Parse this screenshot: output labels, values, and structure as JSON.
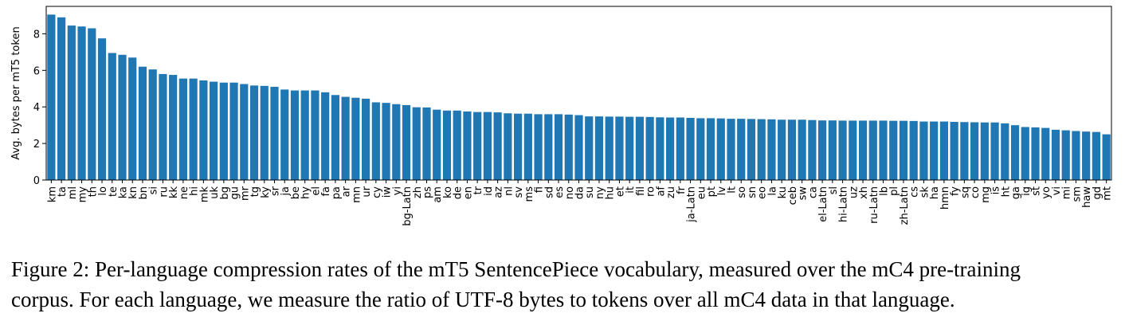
{
  "chart_data": {
    "type": "bar",
    "ylabel": "Avg. bytes per mT5 token",
    "categories": [
      "km",
      "ta",
      "ml",
      "my",
      "th",
      "lo",
      "te",
      "ka",
      "kn",
      "bn",
      "si",
      "ru",
      "kk",
      "ne",
      "hi",
      "mk",
      "uk",
      "bg",
      "gu",
      "mr",
      "tg",
      "ky",
      "sr",
      "ja",
      "be",
      "hy",
      "el",
      "fa",
      "pa",
      "ar",
      "mn",
      "ur",
      "cy",
      "iw",
      "yi",
      "bg-Latn",
      "zh",
      "ps",
      "am",
      "ko",
      "de",
      "en",
      "tr",
      "id",
      "az",
      "nl",
      "sv",
      "ms",
      "fi",
      "sd",
      "es",
      "no",
      "da",
      "su",
      "ny",
      "hu",
      "et",
      "it",
      "fil",
      "ro",
      "af",
      "zu",
      "fr",
      "ja-Latn",
      "eu",
      "pt",
      "lv",
      "lt",
      "so",
      "sn",
      "eo",
      "la",
      "ku",
      "ceb",
      "sw",
      "ca",
      "el-Latn",
      "sl",
      "hi-Latn",
      "uz",
      "xh",
      "ru-Latn",
      "lb",
      "pl",
      "zh-Latn",
      "cs",
      "sk",
      "ha",
      "hmn",
      "fy",
      "sq",
      "co",
      "mg",
      "is",
      "ht",
      "ga",
      "ig",
      "st",
      "yo",
      "vi",
      "mi",
      "sm",
      "haw",
      "gd",
      "mt"
    ],
    "values": [
      9.05,
      8.9,
      8.45,
      8.4,
      8.3,
      7.75,
      6.95,
      6.85,
      6.7,
      6.2,
      6.05,
      5.8,
      5.75,
      5.55,
      5.55,
      5.45,
      5.38,
      5.33,
      5.33,
      5.25,
      5.17,
      5.15,
      5.1,
      4.95,
      4.9,
      4.9,
      4.9,
      4.8,
      4.65,
      4.55,
      4.5,
      4.45,
      4.25,
      4.22,
      4.15,
      4.1,
      3.98,
      3.97,
      3.85,
      3.8,
      3.8,
      3.75,
      3.72,
      3.72,
      3.7,
      3.65,
      3.63,
      3.63,
      3.6,
      3.6,
      3.6,
      3.58,
      3.55,
      3.48,
      3.48,
      3.47,
      3.47,
      3.46,
      3.46,
      3.45,
      3.43,
      3.42,
      3.42,
      3.4,
      3.38,
      3.38,
      3.37,
      3.35,
      3.35,
      3.34,
      3.33,
      3.32,
      3.3,
      3.3,
      3.3,
      3.28,
      3.26,
      3.26,
      3.25,
      3.25,
      3.25,
      3.25,
      3.25,
      3.24,
      3.24,
      3.23,
      3.2,
      3.2,
      3.2,
      3.18,
      3.17,
      3.16,
      3.15,
      3.15,
      3.1,
      3.0,
      2.9,
      2.88,
      2.85,
      2.75,
      2.72,
      2.68,
      2.65,
      2.63,
      2.5
    ],
    "color": "#1f77b4",
    "ylim": [
      0,
      9.5
    ],
    "yticks": [
      0,
      2,
      4,
      6,
      8
    ],
    "caption": [
      "Figure 2: Per-language compression rates of the mT5 SentencePiece vocabulary, measured over the mC4 pre-training",
      "corpus. For each language, we measure the ratio of UTF-8 bytes to tokens over all mC4 data in that language."
    ]
  }
}
